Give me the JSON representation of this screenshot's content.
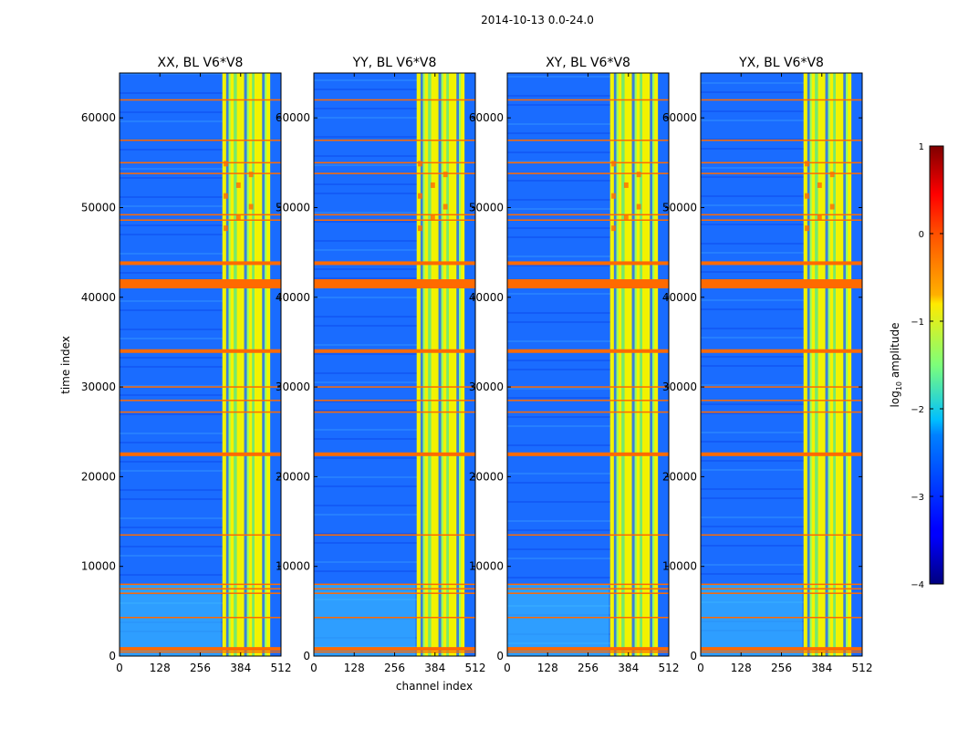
{
  "suptitle": "2014-10-13 0.0-24.0",
  "chart_data": {
    "type": "heatmap",
    "xlabel": "channel index",
    "ylabel": "time index",
    "xlim": [
      0,
      512
    ],
    "ylim": [
      0,
      65000
    ],
    "xticks": [
      0,
      128,
      256,
      384,
      512
    ],
    "xtick_labels": [
      "0",
      "128",
      "256",
      "384",
      "512"
    ],
    "yticks": [
      0,
      10000,
      20000,
      30000,
      40000,
      50000,
      60000
    ],
    "ytick_labels": [
      "0",
      "10000",
      "20000",
      "30000",
      "40000",
      "50000",
      "60000"
    ],
    "panels": [
      {
        "title": "XX, BL V6*V8"
      },
      {
        "title": "YY, BL V6*V8"
      },
      {
        "title": "XY, BL V6*V8"
      },
      {
        "title": "YX, BL V6*V8"
      }
    ],
    "colorbar": {
      "label_prefix": "log",
      "label_subscript": "10",
      "label_suffix": " amplitude",
      "range": [
        -4,
        1
      ],
      "ticks": [
        1,
        0,
        -1,
        -2,
        -3,
        -4
      ],
      "tick_labels": [
        "1",
        "0",
        "−1",
        "−2",
        "−3",
        "−4"
      ],
      "colormap": "jet"
    },
    "bright_channel_range": [
      326,
      478
    ],
    "rfi_time_rows": [
      450,
      800,
      4300,
      7000,
      7500,
      8000,
      13500,
      22500,
      27200,
      28500,
      30000,
      34000,
      41500,
      43800,
      48600,
      49200,
      53800,
      55000,
      57500,
      62000
    ]
  }
}
